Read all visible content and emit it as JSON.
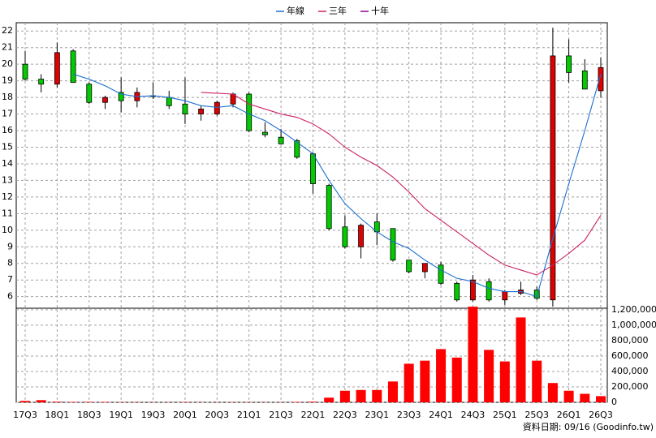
{
  "chart_data": {
    "type": "candlestick",
    "categories": [
      "17Q3",
      null,
      "18Q1",
      null,
      "18Q3",
      null,
      "19Q1",
      null,
      "19Q3",
      null,
      "20Q1",
      null,
      "20Q3",
      null,
      "21Q1",
      null,
      "21Q3",
      null,
      "22Q1",
      null,
      "22Q3",
      null,
      "23Q1",
      null,
      "23Q3",
      null,
      "24Q1",
      null,
      "24Q3",
      null,
      "25Q1",
      null,
      "25Q3",
      null,
      "26Q1",
      null,
      "26Q3"
    ],
    "open": [
      20.0,
      19.1,
      18.8,
      20.8,
      18.8,
      17.7,
      18.3,
      17.8,
      18.1,
      18.0,
      17.6,
      17.0,
      17.0,
      17.6,
      18.2,
      15.9,
      15.6,
      15.4,
      14.6,
      12.7,
      10.2,
      9.0,
      10.5,
      10.1,
      8.2,
      7.5,
      7.9,
      6.8,
      5.8,
      6.9,
      5.8,
      6.2,
      6.4,
      5.8,
      20.5,
      19.6,
      18.4
    ],
    "high": [
      20.8,
      19.4,
      21.3,
      20.9,
      18.9,
      18.1,
      19.2,
      18.6,
      18.9,
      18.4,
      19.2,
      17.5,
      17.8,
      18.3,
      18.3,
      16.5,
      16.1,
      15.5,
      14.7,
      12.8,
      10.9,
      10.4,
      11.0,
      10.1,
      8.2,
      8.0,
      8.1,
      6.9,
      7.3,
      7.1,
      6.4,
      6.9,
      6.6,
      22.2,
      21.5,
      20.3,
      20.4
    ],
    "low": [
      19.0,
      18.3,
      18.6,
      18.9,
      17.6,
      17.3,
      17.1,
      17.4,
      17.9,
      17.3,
      16.4,
      16.6,
      16.9,
      17.4,
      15.9,
      15.6,
      15.2,
      14.3,
      12.2,
      10.0,
      8.9,
      8.3,
      9.1,
      8.1,
      7.4,
      7.1,
      6.7,
      5.7,
      5.7,
      5.7,
      5.5,
      6.1,
      5.8,
      5.4,
      18.9,
      18.5,
      18.0
    ],
    "close": [
      19.1,
      18.8,
      20.7,
      18.9,
      17.7,
      18.0,
      17.8,
      18.3,
      18.05,
      17.5,
      17.0,
      17.3,
      17.7,
      18.2,
      16.0,
      15.75,
      15.2,
      14.4,
      12.8,
      10.1,
      9.0,
      10.3,
      9.9,
      8.2,
      7.5,
      8.0,
      6.8,
      5.8,
      7.0,
      5.8,
      6.3,
      6.4,
      5.9,
      20.5,
      19.5,
      18.5,
      19.8
    ],
    "up_color": "#e00000",
    "down_color": "#00cc00",
    "ylim": [
      5.3,
      22.5
    ],
    "yticks": [
      6,
      7,
      8,
      9,
      10,
      11,
      12,
      13,
      14,
      15,
      16,
      17,
      18,
      19,
      20,
      21,
      22
    ],
    "series": [
      {
        "name": "年線",
        "color": "#1a6fd0",
        "values": [
          null,
          null,
          null,
          19.4,
          19.1,
          18.7,
          18.2,
          18.05,
          18.1,
          18.0,
          17.8,
          17.5,
          17.4,
          17.5,
          17.0,
          16.6,
          16.0,
          15.3,
          14.6,
          13.0,
          11.6,
          10.7,
          9.9,
          9.3,
          8.9,
          8.2,
          7.6,
          7.1,
          6.9,
          6.5,
          6.3,
          6.3,
          6.0,
          9.5,
          12.8,
          16.0,
          19.4
        ]
      },
      {
        "name": "三年",
        "color": "#cc2266",
        "values": [
          null,
          null,
          null,
          null,
          null,
          null,
          null,
          null,
          null,
          null,
          null,
          18.3,
          18.25,
          18.2,
          17.6,
          17.3,
          17.0,
          16.8,
          16.4,
          15.8,
          15.0,
          14.4,
          13.9,
          13.2,
          12.3,
          11.3,
          10.6,
          9.9,
          9.2,
          8.5,
          7.9,
          7.6,
          7.3,
          7.9,
          8.6,
          9.4,
          10.9
        ]
      },
      {
        "name": "十年",
        "color": "#990099",
        "values": [
          null,
          null,
          null,
          null,
          null,
          null,
          null,
          null,
          null,
          null,
          null,
          null,
          null,
          null,
          null,
          null,
          null,
          null,
          null,
          null,
          null,
          null,
          null,
          null,
          null,
          null,
          null,
          null,
          null,
          null,
          null,
          null,
          null,
          null,
          null,
          null,
          null
        ]
      }
    ],
    "volume": {
      "color": "#ff0000",
      "values": [
        18000,
        28000,
        8000,
        5000,
        6000,
        5000,
        3000,
        3000,
        2000,
        2000,
        4000,
        2000,
        2000,
        3000,
        3000,
        2000,
        2000,
        5000,
        8000,
        60000,
        150000,
        160000,
        160000,
        270000,
        500000,
        540000,
        690000,
        580000,
        1240000,
        680000,
        530000,
        1100000,
        540000,
        250000,
        150000,
        110000,
        80000
      ],
      "ylim": [
        0,
        1220000
      ],
      "yticks": [
        0,
        {
          "value": 200000,
          "label": "200,000"
        },
        {
          "value": 400000,
          "label": "400,000"
        },
        {
          "value": 600000,
          "label": "600,000"
        },
        {
          "value": 800000,
          "label": "800,000"
        },
        {
          "value": 1000000,
          "label": "1,000,000"
        },
        {
          "value": 1200000,
          "label": "1,200,000"
        }
      ]
    },
    "grid": true,
    "footnote": "資料日期: 09/16 (Goodinfo.tw)"
  }
}
